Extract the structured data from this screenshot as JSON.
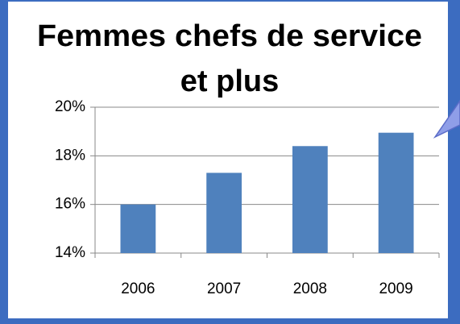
{
  "chart_data": {
    "type": "bar",
    "title": [
      "Femmes chefs de service",
      "et plus"
    ],
    "categories": [
      "2006",
      "2007",
      "2008",
      "2009"
    ],
    "values": [
      16.0,
      17.3,
      18.4,
      18.95
    ],
    "color": "#4f81bd",
    "ylim": [
      14,
      20
    ],
    "yticks": [
      {
        "value": 14,
        "label": "14%"
      },
      {
        "value": 16,
        "label": "16%"
      },
      {
        "value": 18,
        "label": "18%"
      },
      {
        "value": 20,
        "label": "20%"
      }
    ],
    "grid": true
  }
}
